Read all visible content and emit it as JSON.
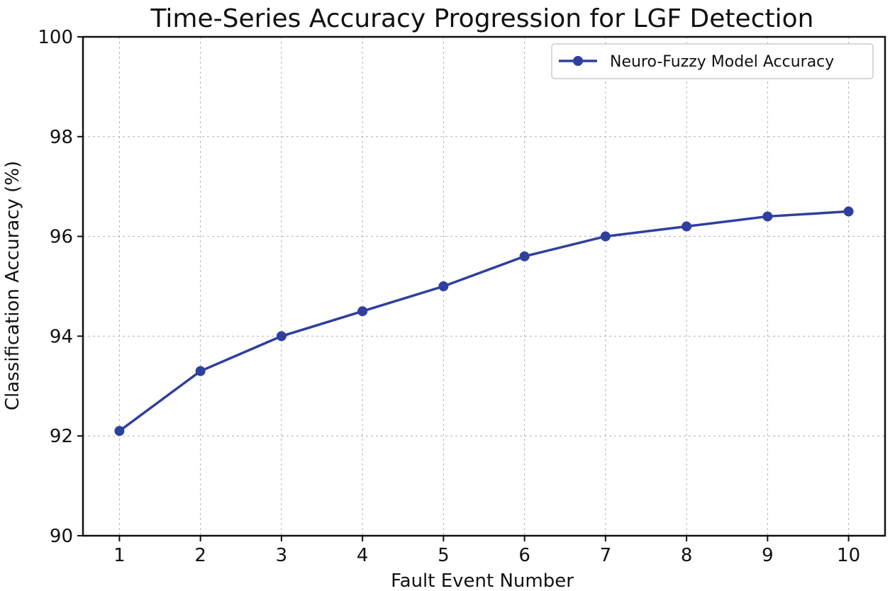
{
  "chart_data": {
    "type": "line",
    "title": "Time-Series Accuracy Progression for LGF Detection",
    "xlabel": "Fault Event Number",
    "ylabel": "Classification Accuracy (%)",
    "x": [
      1,
      2,
      3,
      4,
      5,
      6,
      7,
      8,
      9,
      10
    ],
    "xlim": [
      0.55,
      10.45
    ],
    "ylim": [
      90,
      100
    ],
    "xticks": [
      "1",
      "2",
      "3",
      "4",
      "5",
      "6",
      "7",
      "8",
      "9",
      "10"
    ],
    "yticks": [
      90,
      92,
      94,
      96,
      98,
      100
    ],
    "ytick_labels": [
      "90",
      "92",
      "94",
      "96",
      "98",
      "100"
    ],
    "grid": true,
    "legend_position": "top-right",
    "series": [
      {
        "name": "Neuro-Fuzzy Model Accuracy",
        "color": "#2e3f9e",
        "marker": "circle",
        "values": [
          92.1,
          93.3,
          94.0,
          94.5,
          95.0,
          95.6,
          96.0,
          96.2,
          96.4,
          96.5
        ]
      }
    ]
  }
}
